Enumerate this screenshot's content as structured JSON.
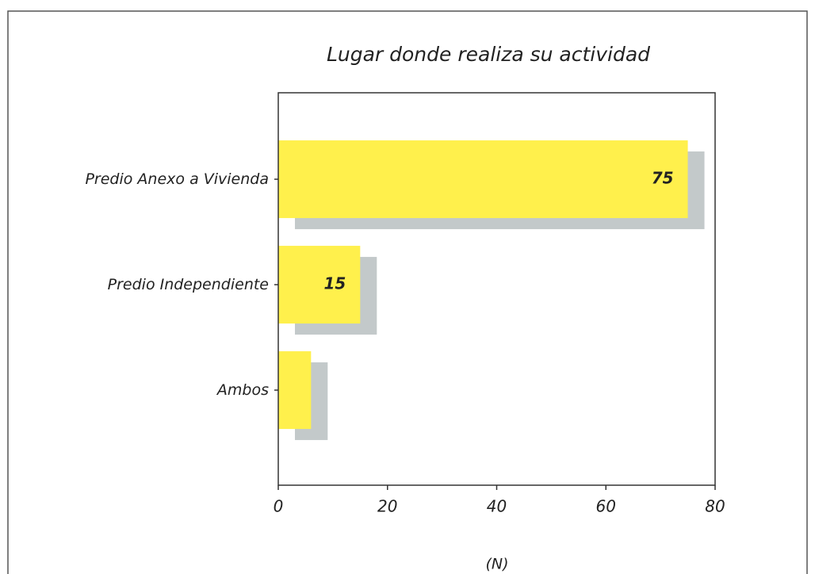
{
  "chart_data": {
    "type": "bar",
    "orientation": "horizontal",
    "title": "Lugar donde realiza su actividad",
    "categories": [
      "Predio Anexo a Vivienda",
      "Predio Independiente",
      "Ambos"
    ],
    "values": [
      75,
      15,
      6
    ],
    "color": "#fff04c",
    "shadow_color": "#c3c9ca",
    "xlim": [
      0,
      80
    ],
    "xticks": [
      0,
      20,
      40,
      60,
      80
    ],
    "xlabel": "(N)"
  }
}
